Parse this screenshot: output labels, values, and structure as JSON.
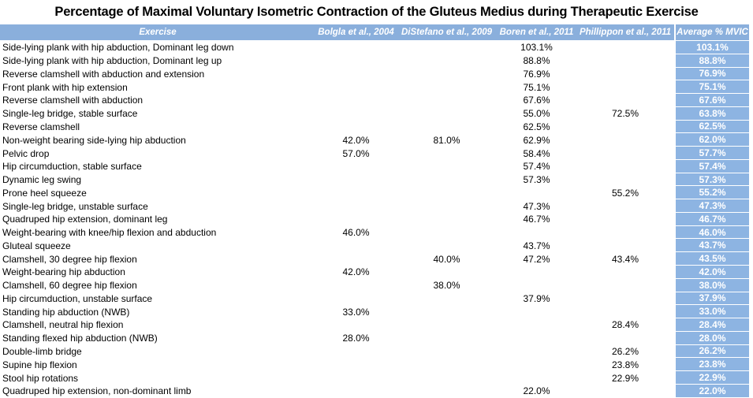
{
  "chart_data": {
    "type": "table",
    "title": "Percentage of Maximal Voluntary Isometric Contraction of the Gluteus Medius during Therapeutic Exercise",
    "columns": [
      "Exercise",
      "Bolgla et al., 2004",
      "DiStefano et al., 2009",
      "Boren et al., 2011",
      "Phillippon et al., 2011",
      "Average % MVIC"
    ],
    "rows": [
      [
        "Side-lying plank with hip abduction, Dominant leg down",
        "",
        "",
        "103.1%",
        "",
        "103.1%"
      ],
      [
        "Side-lying plank with hip abduction, Dominant leg up",
        "",
        "",
        "88.8%",
        "",
        "88.8%"
      ],
      [
        "Reverse clamshell with abduction and extension",
        "",
        "",
        "76.9%",
        "",
        "76.9%"
      ],
      [
        "Front plank with hip extension",
        "",
        "",
        "75.1%",
        "",
        "75.1%"
      ],
      [
        "Reverse clamshell with abduction",
        "",
        "",
        "67.6%",
        "",
        "67.6%"
      ],
      [
        "Single-leg bridge, stable surface",
        "",
        "",
        "55.0%",
        "72.5%",
        "63.8%"
      ],
      [
        "Reverse clamshell",
        "",
        "",
        "62.5%",
        "",
        "62.5%"
      ],
      [
        "Non-weight bearing side-lying hip abduction",
        "42.0%",
        "81.0%",
        "62.9%",
        "",
        "62.0%"
      ],
      [
        "Pelvic drop",
        "57.0%",
        "",
        "58.4%",
        "",
        "57.7%"
      ],
      [
        "Hip circumduction, stable surface",
        "",
        "",
        "57.4%",
        "",
        "57.4%"
      ],
      [
        "Dynamic leg swing",
        "",
        "",
        "57.3%",
        "",
        "57.3%"
      ],
      [
        "Prone heel squeeze",
        "",
        "",
        "",
        "55.2%",
        "55.2%"
      ],
      [
        "Single-leg bridge, unstable surface",
        "",
        "",
        "47.3%",
        "",
        "47.3%"
      ],
      [
        "Quadruped hip extension, dominant leg",
        "",
        "",
        "46.7%",
        "",
        "46.7%"
      ],
      [
        "Weight-bearing with knee/hip flexion and abduction",
        "46.0%",
        "",
        "",
        "",
        "46.0%"
      ],
      [
        "Gluteal squeeze",
        "",
        "",
        "43.7%",
        "",
        "43.7%"
      ],
      [
        "Clamshell, 30 degree hip flexion",
        "",
        "40.0%",
        "47.2%",
        "43.4%",
        "43.5%"
      ],
      [
        "Weight-bearing hip abduction",
        "42.0%",
        "",
        "",
        "",
        "42.0%"
      ],
      [
        "Clamshell, 60 degree hip flexion",
        "",
        "38.0%",
        "",
        "",
        "38.0%"
      ],
      [
        "Hip circumduction, unstable surface",
        "",
        "",
        "37.9%",
        "",
        "37.9%"
      ],
      [
        "Standing hip abduction (NWB)",
        "33.0%",
        "",
        "",
        "",
        "33.0%"
      ],
      [
        "Clamshell, neutral hip flexion",
        "",
        "",
        "",
        "28.4%",
        "28.4%"
      ],
      [
        "Standing flexed hip abduction (NWB)",
        "28.0%",
        "",
        "",
        "",
        "28.0%"
      ],
      [
        "Double-limb bridge",
        "",
        "",
        "",
        "26.2%",
        "26.2%"
      ],
      [
        "Supine hip flexion",
        "",
        "",
        "",
        "23.8%",
        "23.8%"
      ],
      [
        "Stool hip rotations",
        "",
        "",
        "",
        "22.9%",
        "22.9%"
      ],
      [
        "Quadruped hip extension, non-dominant limb",
        "",
        "",
        "22.0%",
        "",
        "22.0%"
      ]
    ],
    "colors": {
      "header_bg": "#8AAFDC",
      "average_column_bg": "#8DB4E2",
      "header_text": "#FFFFFF",
      "average_text": "#FFFFFF",
      "body_text": "#000000"
    },
    "layout": {
      "average_column_position": "right",
      "gridlines": "none",
      "value_alignment": "center"
    }
  }
}
